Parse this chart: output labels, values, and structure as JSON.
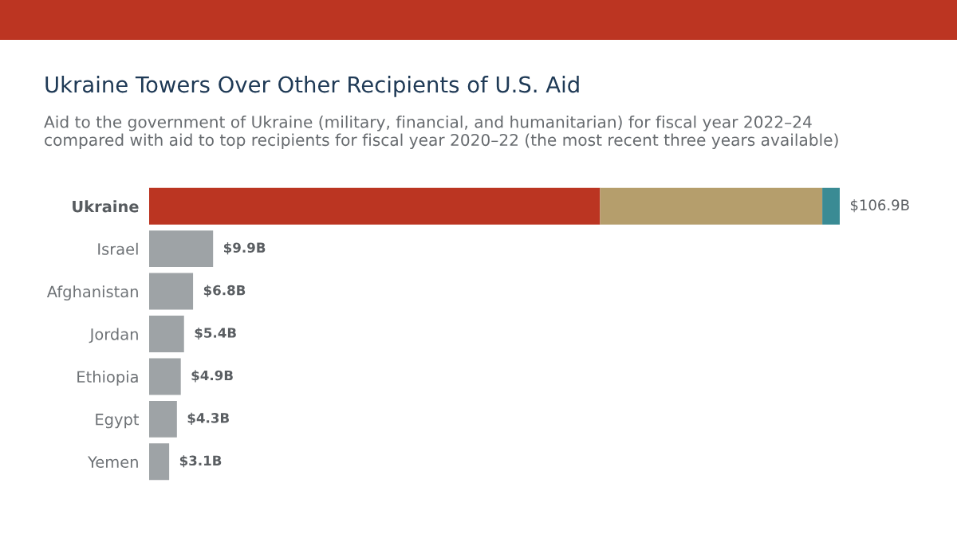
{
  "chart_data": {
    "type": "bar",
    "orientation": "horizontal",
    "stacked": true,
    "title": "Ukraine Towers Over Other Recipients of U.S. Aid",
    "subtitle": "Aid to the government of Ukraine (military, financial, and humanitarian) for fiscal year 2022–24 compared with aid to top recipients for fiscal year 2020–22 (the most recent three years available)",
    "categories": [
      "Ukraine",
      "Israel",
      "Afghanistan",
      "Jordan",
      "Ethiopia",
      "Egypt",
      "Yemen"
    ],
    "series": [
      {
        "color": "#bb3522",
        "values": [
          69.8,
          null,
          null,
          null,
          null,
          null,
          null
        ]
      },
      {
        "color": "#b59e6c",
        "values": [
          34.4,
          null,
          null,
          null,
          null,
          null,
          null
        ]
      },
      {
        "color": "#3a8b94",
        "values": [
          2.7,
          null,
          null,
          null,
          null,
          null,
          null
        ]
      },
      {
        "color": "#9ea3a6",
        "values": [
          null,
          9.9,
          6.8,
          5.4,
          4.9,
          4.3,
          3.1
        ],
        "value_labels": [
          null,
          "$9.9B",
          "$6.8B",
          "$5.4B",
          "$4.9B",
          "$4.3B",
          "$3.1B"
        ]
      }
    ],
    "totals": [
      "$106.9B",
      null,
      null,
      null,
      null,
      null,
      null
    ],
    "tick_labels": "y"
  }
}
